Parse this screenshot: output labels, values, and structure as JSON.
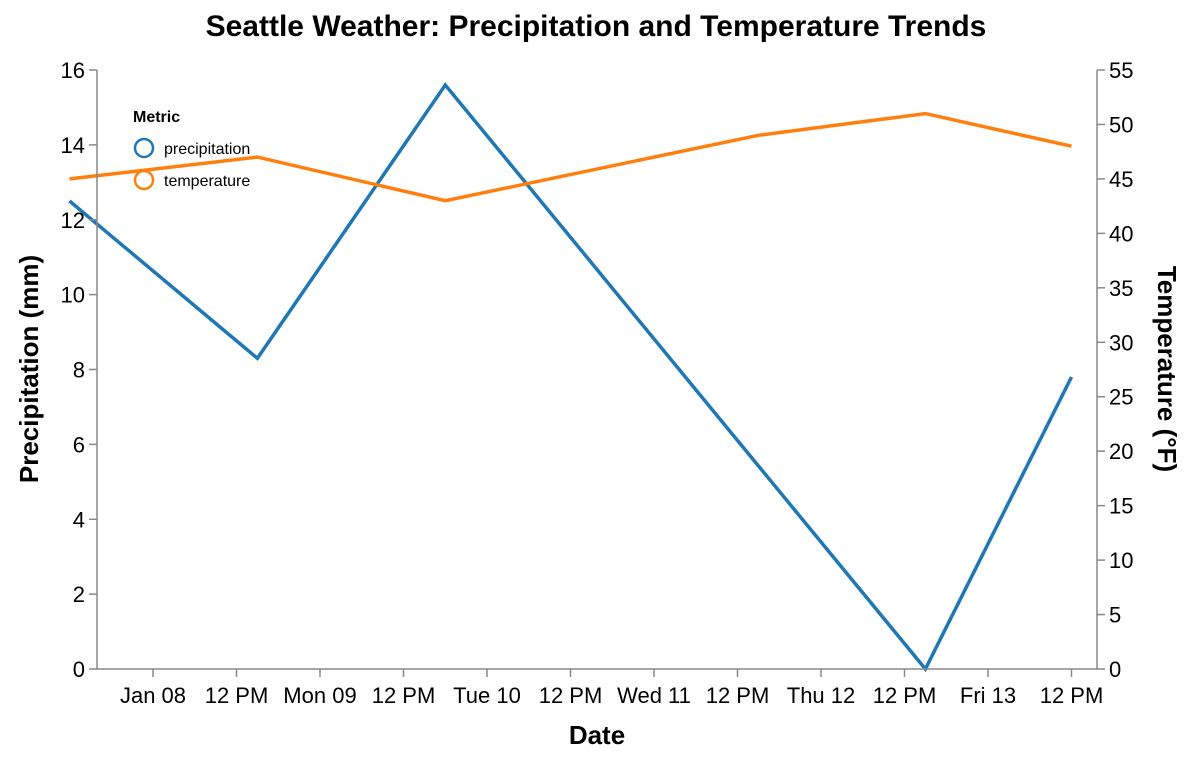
{
  "chart_data": {
    "type": "line",
    "title": "Seattle Weather: Precipitation and Temperature Trends",
    "xlabel": "Date",
    "ylabel_left": "Precipitation (mm)",
    "ylabel_right": "Temperature (°F)",
    "x": [
      "2012-01-08",
      "2012-01-09",
      "2012-01-10",
      "2012-01-11",
      "2012-01-12",
      "2012-01-13"
    ],
    "x_tick_labels": [
      "Jan 08",
      "12 PM",
      "Mon 09",
      "12 PM",
      "Tue 10",
      "12 PM",
      "Wed 11",
      "12 PM",
      "Thu 12",
      "12 PM",
      "Fri 13",
      "12 PM"
    ],
    "y_left_ticks": [
      0,
      2,
      4,
      6,
      8,
      10,
      12,
      14,
      16
    ],
    "y_right_ticks": [
      0,
      5,
      10,
      15,
      20,
      25,
      30,
      35,
      40,
      45,
      50,
      55
    ],
    "ylim_left": [
      0,
      16
    ],
    "ylim_right": [
      0,
      55
    ],
    "grid": false,
    "legend": {
      "title": "Metric",
      "placement": "top-left",
      "entries": [
        "precipitation",
        "temperature"
      ]
    },
    "series": [
      {
        "name": "precipitation",
        "axis": "left",
        "color": "#1f77b4",
        "points": [
          {
            "x": "2012-01-07 12:00",
            "y": 12.5
          },
          {
            "x": "2012-01-08 15:00",
            "y": 8.3
          },
          {
            "x": "2012-01-09 18:00",
            "y": 15.6
          },
          {
            "x": "2012-01-12 15:00",
            "y": 0.0
          },
          {
            "x": "2012-01-13 12:00",
            "y": 7.8
          }
        ]
      },
      {
        "name": "temperature",
        "axis": "right",
        "color": "#ff7f0e",
        "points": [
          {
            "x": "2012-01-07 12:00",
            "y": 45
          },
          {
            "x": "2012-01-08 15:00",
            "y": 47
          },
          {
            "x": "2012-01-09 18:00",
            "y": 43
          },
          {
            "x": "2012-01-11 15:00",
            "y": 49
          },
          {
            "x": "2012-01-12 15:00",
            "y": 51
          },
          {
            "x": "2012-01-13 12:00",
            "y": 48
          }
        ]
      }
    ]
  }
}
